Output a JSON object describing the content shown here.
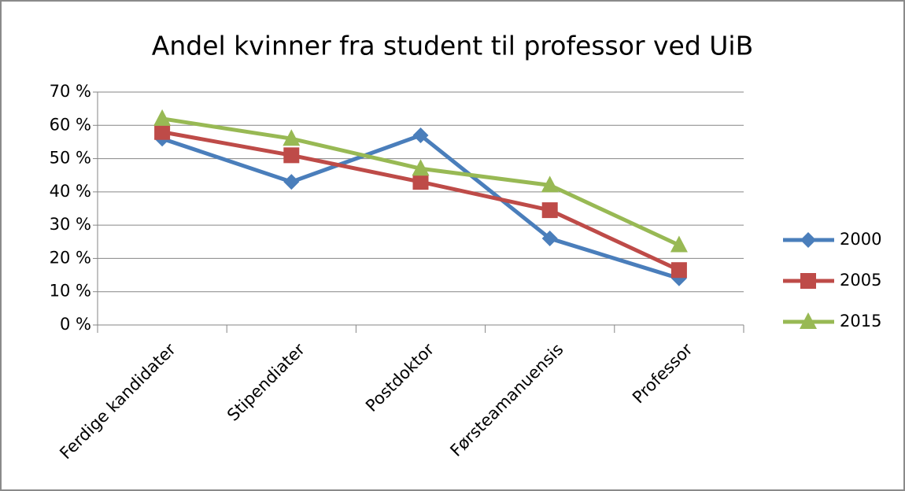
{
  "chart_data": {
    "type": "line",
    "title": "Andel kvinner fra student til professor ved UiB",
    "categories": [
      "Ferdige kandidater",
      "Stipendiater",
      "Postdoktor",
      "Førsteamanuensis",
      "Professor"
    ],
    "series": [
      {
        "name": "2000",
        "color": "#4a7ebb",
        "marker": "diamond",
        "values": [
          56,
          43,
          57,
          26,
          14
        ]
      },
      {
        "name": "2005",
        "color": "#be4b48",
        "marker": "square",
        "values": [
          58,
          51,
          43,
          34.5,
          16.5
        ]
      },
      {
        "name": "2015",
        "color": "#98b954",
        "marker": "triangle",
        "values": [
          62,
          56,
          47,
          42,
          24
        ]
      }
    ],
    "ylim": [
      0,
      70
    ],
    "yticks": [
      {
        "value": 0,
        "label": "0 %"
      },
      {
        "value": 10,
        "label": "10 %"
      },
      {
        "value": 20,
        "label": "20 %"
      },
      {
        "value": 30,
        "label": "30 %"
      },
      {
        "value": 40,
        "label": "40 %"
      },
      {
        "value": 50,
        "label": "50 %"
      },
      {
        "value": 60,
        "label": "60 %"
      },
      {
        "value": 70,
        "label": "70 %"
      }
    ],
    "grid": true,
    "legend": "right"
  }
}
